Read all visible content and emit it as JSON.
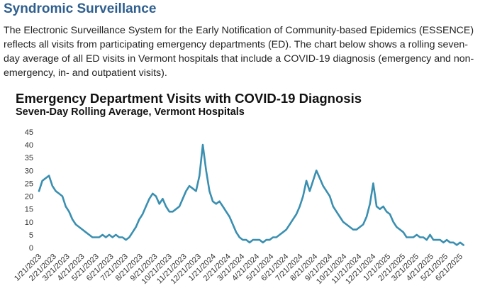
{
  "section": {
    "heading": "Syndromic Surveillance",
    "intro": "The Electronic Surveillance System for the Early Notification of Community-based Epidemics (ESSENCE) reflects all visits from participating emergency departments (ED). The chart below shows a rolling seven-day average of all ED visits in Vermont hospitals that include a COVID-19 diagnosis (emergency and non-emergency, in- and outpatient visits)."
  },
  "chart_data": {
    "type": "line",
    "title": "Emergency Department Visits with COVID-19 Diagnosis",
    "subtitle": "Seven-Day Rolling Average, Vermont Hospitals",
    "xlabel": "",
    "ylabel": "",
    "ylim": [
      0,
      45
    ],
    "yticks": [
      0,
      5,
      10,
      15,
      20,
      25,
      30,
      35,
      40,
      45
    ],
    "grid": false,
    "legend": "none",
    "line_color": "#3a8fb0",
    "xticks": [
      "1/21/2023",
      "2/21/2023",
      "3/21/2023",
      "4/21/2023",
      "5/21/2023",
      "6/21/2023",
      "7/21/2023",
      "8/21/2023",
      "9/21/2023",
      "10/21/2023",
      "11/21/2023",
      "12/21/2023",
      "1/21/2024",
      "2/21/2024",
      "3/21/2024",
      "4/21/2024",
      "5/21/2024",
      "6/21/2024",
      "7/21/2024",
      "8/21/2024",
      "9/21/2024",
      "10/21/2024",
      "11/21/2024",
      "12/21/2024",
      "1/21/2025",
      "2/21/2025",
      "3/21/2025",
      "4/21/2025",
      "5/21/2025",
      "6/21/2025"
    ],
    "series": [
      {
        "values": [
          {
            "x": "2023-01-21",
            "y": 22
          },
          {
            "x": "2023-01-28",
            "y": 26
          },
          {
            "x": "2023-02-04",
            "y": 27
          },
          {
            "x": "2023-02-11",
            "y": 28
          },
          {
            "x": "2023-02-18",
            "y": 24
          },
          {
            "x": "2023-02-25",
            "y": 22
          },
          {
            "x": "2023-03-04",
            "y": 21
          },
          {
            "x": "2023-03-11",
            "y": 20
          },
          {
            "x": "2023-03-18",
            "y": 16
          },
          {
            "x": "2023-03-25",
            "y": 14
          },
          {
            "x": "2023-04-01",
            "y": 11
          },
          {
            "x": "2023-04-08",
            "y": 9
          },
          {
            "x": "2023-04-15",
            "y": 8
          },
          {
            "x": "2023-04-22",
            "y": 7
          },
          {
            "x": "2023-04-29",
            "y": 6
          },
          {
            "x": "2023-05-06",
            "y": 5
          },
          {
            "x": "2023-05-13",
            "y": 4
          },
          {
            "x": "2023-05-20",
            "y": 4
          },
          {
            "x": "2023-05-27",
            "y": 4
          },
          {
            "x": "2023-06-03",
            "y": 5
          },
          {
            "x": "2023-06-10",
            "y": 4
          },
          {
            "x": "2023-06-17",
            "y": 5
          },
          {
            "x": "2023-06-24",
            "y": 4
          },
          {
            "x": "2023-07-01",
            "y": 5
          },
          {
            "x": "2023-07-08",
            "y": 4
          },
          {
            "x": "2023-07-15",
            "y": 4
          },
          {
            "x": "2023-07-22",
            "y": 3
          },
          {
            "x": "2023-07-29",
            "y": 4
          },
          {
            "x": "2023-08-05",
            "y": 6
          },
          {
            "x": "2023-08-12",
            "y": 8
          },
          {
            "x": "2023-08-19",
            "y": 11
          },
          {
            "x": "2023-08-26",
            "y": 13
          },
          {
            "x": "2023-09-02",
            "y": 16
          },
          {
            "x": "2023-09-09",
            "y": 19
          },
          {
            "x": "2023-09-16",
            "y": 21
          },
          {
            "x": "2023-09-23",
            "y": 20
          },
          {
            "x": "2023-09-30",
            "y": 17
          },
          {
            "x": "2023-10-07",
            "y": 19
          },
          {
            "x": "2023-10-14",
            "y": 16
          },
          {
            "x": "2023-10-21",
            "y": 14
          },
          {
            "x": "2023-10-28",
            "y": 14
          },
          {
            "x": "2023-11-04",
            "y": 15
          },
          {
            "x": "2023-11-11",
            "y": 16
          },
          {
            "x": "2023-11-18",
            "y": 19
          },
          {
            "x": "2023-11-25",
            "y": 22
          },
          {
            "x": "2023-12-02",
            "y": 24
          },
          {
            "x": "2023-12-09",
            "y": 23
          },
          {
            "x": "2023-12-16",
            "y": 22
          },
          {
            "x": "2023-12-23",
            "y": 28
          },
          {
            "x": "2023-12-30",
            "y": 40
          },
          {
            "x": "2024-01-06",
            "y": 30
          },
          {
            "x": "2024-01-13",
            "y": 22
          },
          {
            "x": "2024-01-20",
            "y": 18
          },
          {
            "x": "2024-01-27",
            "y": 17
          },
          {
            "x": "2024-02-03",
            "y": 18
          },
          {
            "x": "2024-02-10",
            "y": 16
          },
          {
            "x": "2024-02-17",
            "y": 14
          },
          {
            "x": "2024-02-24",
            "y": 12
          },
          {
            "x": "2024-03-02",
            "y": 9
          },
          {
            "x": "2024-03-09",
            "y": 6
          },
          {
            "x": "2024-03-16",
            "y": 4
          },
          {
            "x": "2024-03-23",
            "y": 3
          },
          {
            "x": "2024-03-30",
            "y": 3
          },
          {
            "x": "2024-04-06",
            "y": 2
          },
          {
            "x": "2024-04-13",
            "y": 3
          },
          {
            "x": "2024-04-20",
            "y": 3
          },
          {
            "x": "2024-04-27",
            "y": 3
          },
          {
            "x": "2024-05-04",
            "y": 2
          },
          {
            "x": "2024-05-11",
            "y": 3
          },
          {
            "x": "2024-05-18",
            "y": 3
          },
          {
            "x": "2024-05-25",
            "y": 4
          },
          {
            "x": "2024-06-01",
            "y": 4
          },
          {
            "x": "2024-06-08",
            "y": 5
          },
          {
            "x": "2024-06-15",
            "y": 6
          },
          {
            "x": "2024-06-22",
            "y": 7
          },
          {
            "x": "2024-06-29",
            "y": 9
          },
          {
            "x": "2024-07-06",
            "y": 11
          },
          {
            "x": "2024-07-13",
            "y": 13
          },
          {
            "x": "2024-07-20",
            "y": 16
          },
          {
            "x": "2024-07-27",
            "y": 20
          },
          {
            "x": "2024-08-03",
            "y": 26
          },
          {
            "x": "2024-08-10",
            "y": 22
          },
          {
            "x": "2024-08-17",
            "y": 26
          },
          {
            "x": "2024-08-24",
            "y": 30
          },
          {
            "x": "2024-08-31",
            "y": 27
          },
          {
            "x": "2024-09-07",
            "y": 24
          },
          {
            "x": "2024-09-14",
            "y": 22
          },
          {
            "x": "2024-09-21",
            "y": 20
          },
          {
            "x": "2024-09-28",
            "y": 16
          },
          {
            "x": "2024-10-05",
            "y": 14
          },
          {
            "x": "2024-10-12",
            "y": 12
          },
          {
            "x": "2024-10-19",
            "y": 10
          },
          {
            "x": "2024-10-26",
            "y": 9
          },
          {
            "x": "2024-11-02",
            "y": 8
          },
          {
            "x": "2024-11-09",
            "y": 7
          },
          {
            "x": "2024-11-16",
            "y": 7
          },
          {
            "x": "2024-11-23",
            "y": 8
          },
          {
            "x": "2024-11-30",
            "y": 9
          },
          {
            "x": "2024-12-07",
            "y": 12
          },
          {
            "x": "2024-12-14",
            "y": 17
          },
          {
            "x": "2024-12-21",
            "y": 25
          },
          {
            "x": "2024-12-28",
            "y": 16
          },
          {
            "x": "2025-01-04",
            "y": 15
          },
          {
            "x": "2025-01-11",
            "y": 16
          },
          {
            "x": "2025-01-18",
            "y": 14
          },
          {
            "x": "2025-01-25",
            "y": 13
          },
          {
            "x": "2025-02-01",
            "y": 10
          },
          {
            "x": "2025-02-08",
            "y": 8
          },
          {
            "x": "2025-02-15",
            "y": 7
          },
          {
            "x": "2025-02-22",
            "y": 6
          },
          {
            "x": "2025-03-01",
            "y": 4
          },
          {
            "x": "2025-03-08",
            "y": 4
          },
          {
            "x": "2025-03-15",
            "y": 4
          },
          {
            "x": "2025-03-22",
            "y": 5
          },
          {
            "x": "2025-03-29",
            "y": 4
          },
          {
            "x": "2025-04-05",
            "y": 4
          },
          {
            "x": "2025-04-12",
            "y": 3
          },
          {
            "x": "2025-04-19",
            "y": 5
          },
          {
            "x": "2025-04-26",
            "y": 3
          },
          {
            "x": "2025-05-03",
            "y": 3
          },
          {
            "x": "2025-05-10",
            "y": 3
          },
          {
            "x": "2025-05-17",
            "y": 2
          },
          {
            "x": "2025-05-24",
            "y": 3
          },
          {
            "x": "2025-05-31",
            "y": 2
          },
          {
            "x": "2025-06-07",
            "y": 2
          },
          {
            "x": "2025-06-14",
            "y": 1
          },
          {
            "x": "2025-06-21",
            "y": 2
          },
          {
            "x": "2025-06-28",
            "y": 1
          }
        ]
      }
    ]
  }
}
